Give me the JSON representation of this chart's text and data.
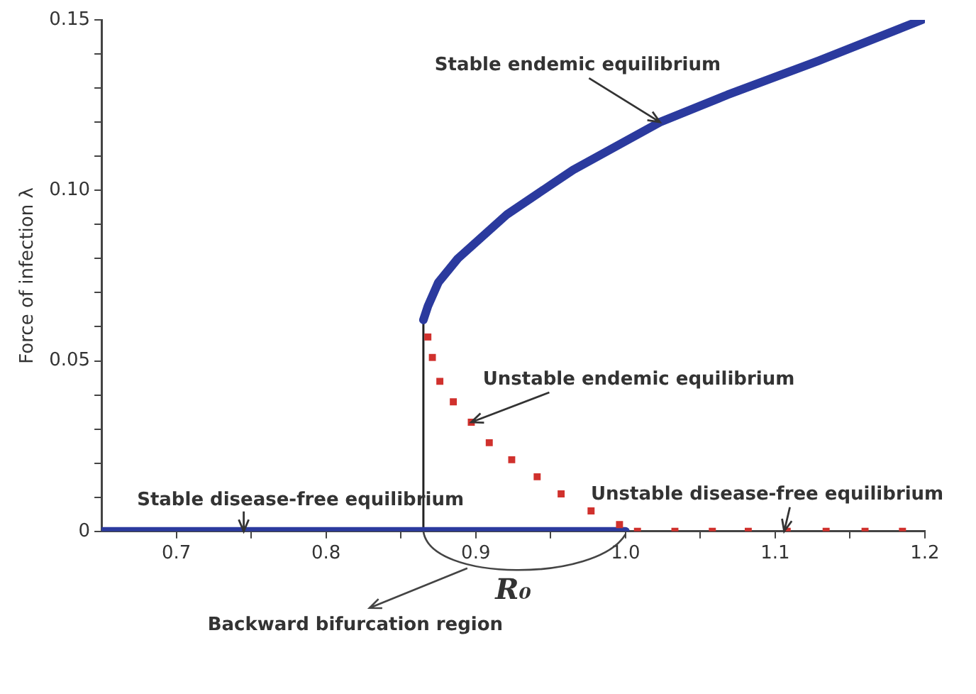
{
  "chart_data": {
    "type": "line",
    "xlabel": "R₀",
    "ylabel": "Force of infection λ",
    "xlim": [
      0.65,
      1.2
    ],
    "ylim": [
      0,
      0.15
    ],
    "xticks": [
      {
        "value": 0.7,
        "label": "0.7"
      },
      {
        "value": 0.75,
        "label": null
      },
      {
        "value": 0.8,
        "label": "0.8"
      },
      {
        "value": 0.85,
        "label": null
      },
      {
        "value": 0.9,
        "label": "0.9"
      },
      {
        "value": 0.95,
        "label": null
      },
      {
        "value": 1,
        "label": "1.0"
      },
      {
        "value": 1.05,
        "label": null
      },
      {
        "value": 1.1,
        "label": "1.1"
      },
      {
        "value": 1.15,
        "label": null
      },
      {
        "value": 1.2,
        "label": "1.2"
      }
    ],
    "yticks": [
      0,
      {
        "value": 0.01,
        "label": null
      },
      {
        "value": 0.02,
        "label": null
      },
      {
        "value": 0.03,
        "label": null
      },
      {
        "value": 0.04,
        "label": null
      },
      0.05,
      {
        "value": 0.06,
        "label": null
      },
      {
        "value": 0.07,
        "label": null
      },
      {
        "value": 0.08,
        "label": null
      },
      {
        "value": 0.09,
        "label": null
      },
      {
        "value": 0.1,
        "label": "0.10"
      },
      {
        "value": 0.11,
        "label": null
      },
      {
        "value": 0.12,
        "label": null
      },
      {
        "value": 0.13,
        "label": null
      },
      {
        "value": 0.14,
        "label": null
      },
      0.15
    ],
    "grid": false,
    "legend": false,
    "series": [
      {
        "color": "#2b3a9e",
        "x": [
          0.865,
          0.868,
          0.875,
          0.888,
          0.921,
          0.965,
          1.023,
          1.068,
          1.129,
          1.198
        ],
        "values": [
          0.062,
          0.066,
          0.073,
          0.08,
          0.093,
          0.106,
          0.12,
          0.128,
          0.138,
          0.15
        ]
      },
      {
        "type": "scatter",
        "marker": "square",
        "color": "#d0312d",
        "x": [
          0.868,
          0.871,
          0.876,
          0.885,
          0.897,
          0.909,
          0.924,
          0.941,
          0.957,
          0.977,
          0.996
        ],
        "values": [
          0.057,
          0.051,
          0.044,
          0.038,
          0.032,
          0.026,
          0.021,
          0.016,
          0.011,
          0.006,
          0.002
        ]
      },
      {
        "color": "#2b3a9e",
        "x": [
          0.65,
          1.0
        ],
        "values": [
          0,
          0
        ]
      },
      {
        "type": "scatter",
        "marker": "square",
        "color": "#d0312d",
        "x": [
          1.008,
          1.033,
          1.058,
          1.082,
          1.108,
          1.134,
          1.16,
          1.185
        ],
        "values": [
          0,
          0,
          0,
          0,
          0,
          0,
          0,
          0
        ]
      },
      {
        "color": "#222222",
        "x": [
          0.865,
          0.865
        ],
        "values": [
          0,
          0.062
        ]
      }
    ],
    "annotations": [
      {
        "text": "Stable endemic equilibrium",
        "x": 1.023,
        "y": 0.12
      },
      {
        "text": "Unstable endemic equilibrium",
        "x": 0.897,
        "y": 0.032
      },
      {
        "text": "Stable disease-free equilibrium",
        "x": 0.745,
        "y": 0
      },
      {
        "text": "Unstable disease-free equilibrium",
        "x": 1.106,
        "y": 0
      },
      "Backward bifurcation region"
    ]
  }
}
